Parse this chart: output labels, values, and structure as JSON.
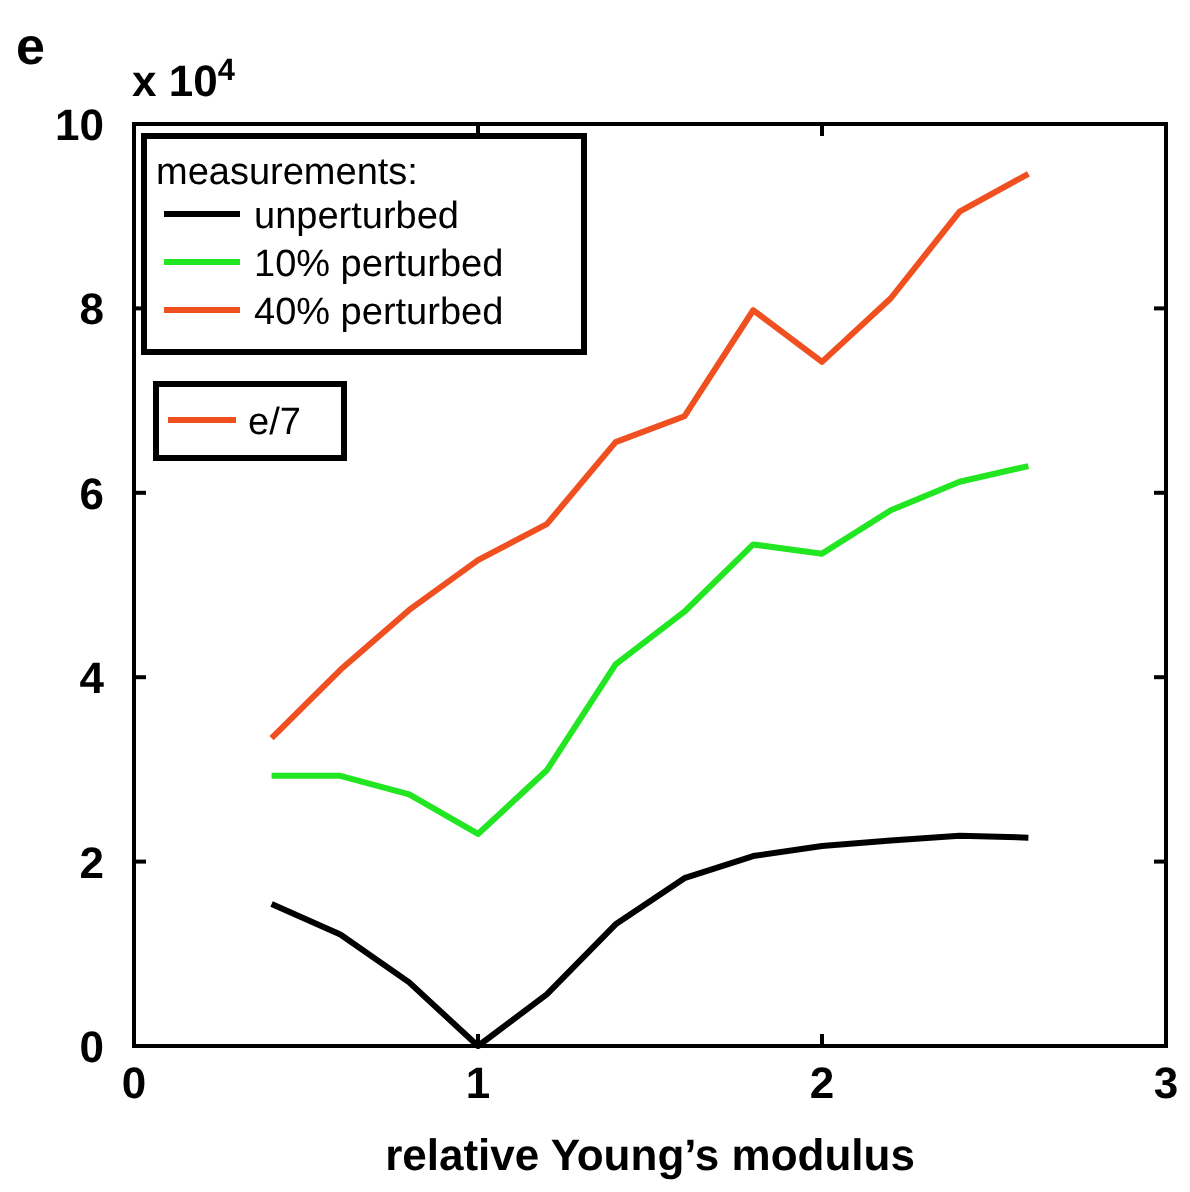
{
  "chart_data": {
    "type": "line",
    "xlabel": "relative Young’s modulus",
    "legend_title": "measurements:",
    "legend": "top left",
    "x": [
      0.4,
      0.6,
      0.8,
      1.0,
      1.2,
      1.4,
      1.6,
      1.8,
      2.0,
      2.2,
      2.4,
      2.6
    ],
    "series": [
      {
        "name": "unperturbed",
        "color": "#000000",
        "values": [
          1.54,
          1.21,
          0.69,
          0,
          0.56,
          1.32,
          1.82,
          2.06,
          2.17,
          2.23,
          2.28,
          2.26
        ]
      },
      {
        "name": "10% perturbed",
        "color": "#22e622",
        "values": [
          2.93,
          2.93,
          2.73,
          2.3,
          2.99,
          4.14,
          4.71,
          5.44,
          5.34,
          5.81,
          6.12,
          6.29
        ]
      },
      {
        "name": "40% perturbed",
        "color": "#f05020",
        "values": [
          3.34,
          4.08,
          4.73,
          5.27,
          5.66,
          6.55,
          6.83,
          7.98,
          7.42,
          8.11,
          9.05,
          9.46
        ]
      }
    ],
    "annotations": [
      "e",
      "x 10$^{4}$",
      "e/7"
    ],
    "xlim": [
      0,
      3
    ],
    "xticks": [
      0,
      1,
      2,
      3
    ],
    "ylim": [
      0,
      10
    ],
    "yticks": [
      0,
      2,
      4,
      6,
      8,
      10
    ],
    "grid": false
  }
}
